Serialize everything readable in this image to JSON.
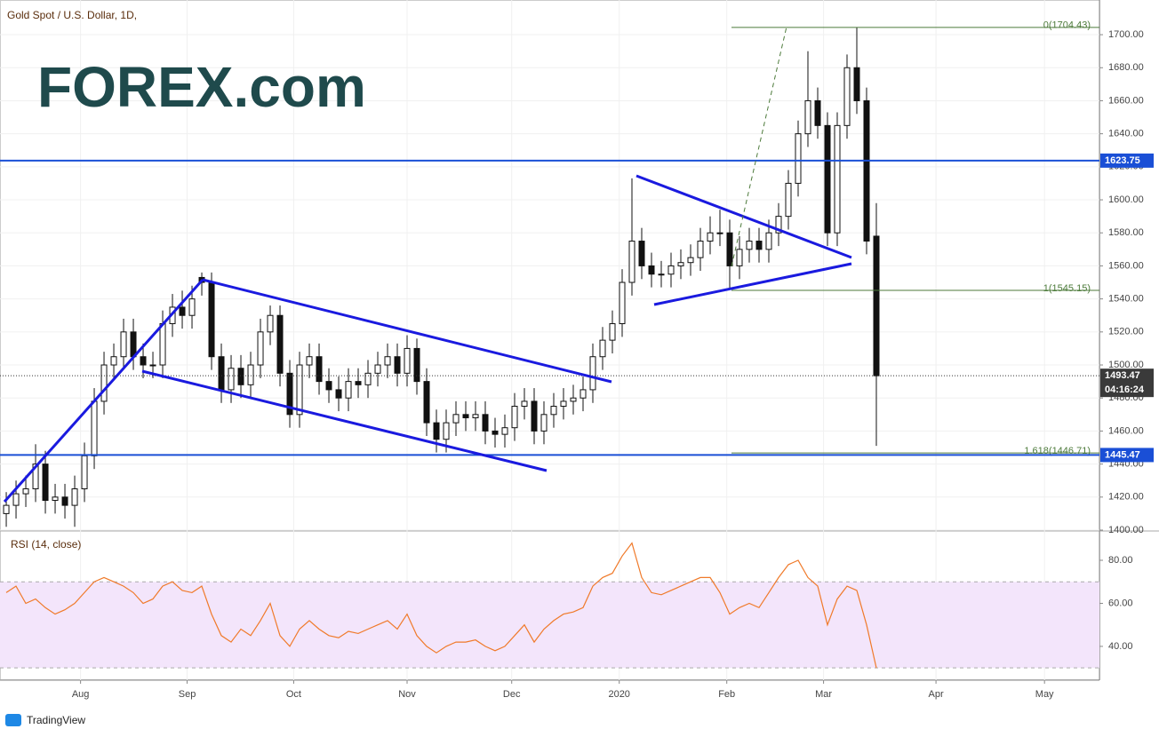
{
  "header": {
    "title": "Gold Spot / U.S. Dollar, 1D,",
    "logo": "FOREX.com"
  },
  "footer": {
    "brand": "TradingView"
  },
  "chart_data": [
    {
      "type": "candlestick",
      "countdown": "04:16:24",
      "open": [
        1410,
        1415,
        1422,
        1425,
        1440,
        1418,
        1420,
        1415,
        1425,
        1445,
        1478,
        1500,
        1505,
        1520,
        1505,
        1500,
        1500,
        1525,
        1535,
        1530,
        1553,
        1550,
        1505,
        1485,
        1498,
        1488,
        1500,
        1520,
        1530,
        1495,
        1470,
        1500,
        1505,
        1490,
        1485,
        1480,
        1490,
        1488,
        1495,
        1500,
        1505,
        1495,
        1510,
        1490,
        1465,
        1455,
        1465,
        1470,
        1468,
        1470,
        1460,
        1458,
        1462,
        1475,
        1478,
        1460,
        1470,
        1475,
        1478,
        1480,
        1485,
        1505,
        1515,
        1525,
        1550,
        1575,
        1560,
        1555,
        1555,
        1560,
        1562,
        1565,
        1575,
        1580,
        1580,
        1560,
        1570,
        1575,
        1570,
        1580,
        1590,
        1610,
        1640,
        1660,
        1645,
        1580,
        1645,
        1680,
        1660,
        1578
      ],
      "high": [
        1423,
        1430,
        1433,
        1452,
        1448,
        1428,
        1428,
        1433,
        1453,
        1486,
        1508,
        1513,
        1528,
        1528,
        1513,
        1508,
        1533,
        1543,
        1545,
        1548,
        1556,
        1556,
        1513,
        1506,
        1506,
        1508,
        1528,
        1536,
        1536,
        1503,
        1508,
        1513,
        1513,
        1498,
        1493,
        1498,
        1498,
        1503,
        1508,
        1513,
        1513,
        1518,
        1516,
        1498,
        1473,
        1473,
        1478,
        1478,
        1478,
        1478,
        1468,
        1470,
        1483,
        1486,
        1486,
        1478,
        1483,
        1486,
        1488,
        1493,
        1513,
        1523,
        1533,
        1558,
        1613,
        1583,
        1568,
        1563,
        1568,
        1570,
        1573,
        1583,
        1590,
        1594,
        1588,
        1578,
        1583,
        1583,
        1588,
        1598,
        1618,
        1648,
        1690,
        1668,
        1653,
        1653,
        1688,
        1704.43,
        1668,
        1598
      ],
      "low": [
        1402,
        1407,
        1414,
        1417,
        1410,
        1410,
        1407,
        1402,
        1417,
        1437,
        1470,
        1492,
        1497,
        1497,
        1492,
        1492,
        1492,
        1517,
        1522,
        1522,
        1542,
        1497,
        1477,
        1477,
        1480,
        1480,
        1492,
        1512,
        1487,
        1462,
        1462,
        1492,
        1482,
        1477,
        1472,
        1472,
        1480,
        1480,
        1487,
        1492,
        1487,
        1487,
        1482,
        1457,
        1447,
        1447,
        1457,
        1460,
        1460,
        1452,
        1450,
        1450,
        1454,
        1467,
        1452,
        1452,
        1462,
        1467,
        1470,
        1472,
        1477,
        1497,
        1507,
        1517,
        1542,
        1552,
        1547,
        1547,
        1547,
        1552,
        1554,
        1557,
        1567,
        1572,
        1546,
        1552,
        1562,
        1562,
        1562,
        1572,
        1582,
        1602,
        1632,
        1637,
        1572,
        1572,
        1637,
        1652,
        1567,
        1451
      ],
      "close": [
        1415,
        1422,
        1425,
        1440,
        1418,
        1420,
        1415,
        1425,
        1445,
        1478,
        1500,
        1505,
        1520,
        1505,
        1500,
        1500,
        1525,
        1535,
        1530,
        1540,
        1550,
        1505,
        1485,
        1498,
        1488,
        1500,
        1520,
        1530,
        1495,
        1470,
        1500,
        1505,
        1490,
        1485,
        1480,
        1490,
        1488,
        1495,
        1500,
        1505,
        1495,
        1510,
        1490,
        1465,
        1455,
        1465,
        1470,
        1468,
        1470,
        1460,
        1458,
        1462,
        1475,
        1478,
        1460,
        1470,
        1475,
        1478,
        1480,
        1485,
        1505,
        1515,
        1525,
        1550,
        1575,
        1560,
        1555,
        1555,
        1560,
        1562,
        1565,
        1575,
        1580,
        1580,
        1560,
        1570,
        1575,
        1570,
        1580,
        1590,
        1610,
        1640,
        1660,
        1645,
        1580,
        1645,
        1680,
        1660,
        1575,
        1493.47
      ],
      "xlim": [
        -0.64,
        111.82
      ],
      "xticks": [
        {
          "value": 7.6,
          "label": "Aug"
        },
        {
          "value": 18.5,
          "label": "Sep"
        },
        {
          "value": 29.4,
          "label": "Oct"
        },
        {
          "value": 41,
          "label": "Nov"
        },
        {
          "value": 51.7,
          "label": "Dec"
        },
        {
          "value": 62.7,
          "label": "2020"
        },
        {
          "value": 73.7,
          "label": "Feb"
        },
        {
          "value": 83.6,
          "label": "Mar"
        },
        {
          "value": 95.1,
          "label": "Apr"
        },
        {
          "value": 106.2,
          "label": "May"
        }
      ],
      "ylim": [
        1400,
        1721
      ],
      "yticks": [
        {
          "value": 1400,
          "label": "1400.00"
        },
        {
          "value": 1420,
          "label": "1420.00"
        },
        {
          "value": 1440,
          "label": "1440.00"
        },
        {
          "value": 1460,
          "label": "1460.00"
        },
        {
          "value": 1480,
          "label": "1480.00"
        },
        {
          "value": 1500,
          "label": "1500.00"
        },
        {
          "value": 1520,
          "label": "1520.00"
        },
        {
          "value": 1540,
          "label": "1540.00"
        },
        {
          "value": 1560,
          "label": "1560.00"
        },
        {
          "value": 1580,
          "label": "1580.00"
        },
        {
          "value": 1600,
          "label": "1600.00"
        },
        {
          "value": 1620,
          "label": "1620.00"
        },
        {
          "value": 1640,
          "label": "1640.00"
        },
        {
          "value": 1660,
          "label": "1660.00"
        },
        {
          "value": 1680,
          "label": "1680.00"
        },
        {
          "value": 1700,
          "label": "1700.00"
        }
      ],
      "levels": [
        {
          "value": 1623.75,
          "label": "1623.75"
        },
        {
          "value": 1445.47,
          "label": "1445.47"
        }
      ],
      "last_price": {
        "value": 1493.47,
        "label": "1493.47"
      },
      "fib_levels": [
        {
          "value": 1704.43,
          "label": "0(1704.43)"
        },
        {
          "value": 1545.15,
          "label": "1(1545.15)"
        },
        {
          "value": 1446.71,
          "label": "1.618(1446.71)"
        }
      ],
      "up_color": "#ffffff",
      "down_color": "#111111",
      "level_color": "#1a4fd6",
      "fib_color": "#4c7a3a"
    },
    {
      "type": "line",
      "title": "RSI (14, close)",
      "color": "#f07a2a",
      "values": [
        65,
        68,
        60,
        62,
        58,
        55,
        57,
        60,
        65,
        70,
        72,
        70,
        68,
        65,
        60,
        62,
        68,
        70,
        66,
        65,
        68,
        55,
        45,
        42,
        48,
        45,
        52,
        60,
        45,
        40,
        48,
        52,
        48,
        45,
        44,
        47,
        46,
        48,
        50,
        52,
        48,
        55,
        45,
        40,
        37,
        40,
        42,
        42,
        43,
        40,
        38,
        40,
        45,
        50,
        42,
        48,
        52,
        55,
        56,
        58,
        68,
        72,
        74,
        82,
        88,
        72,
        65,
        64,
        66,
        68,
        70,
        72,
        72,
        65,
        55,
        58,
        60,
        58,
        65,
        72,
        78,
        80,
        72,
        68,
        50,
        62,
        68,
        66,
        50,
        30
      ],
      "bands": [
        30,
        70
      ],
      "band_color": "#f3e5fb",
      "ylim": [
        24.7,
        92.8
      ],
      "yticks": [
        {
          "value": 40,
          "label": "40.00"
        },
        {
          "value": 60,
          "label": "60.00"
        },
        {
          "value": 80,
          "label": "80.00"
        }
      ]
    }
  ]
}
